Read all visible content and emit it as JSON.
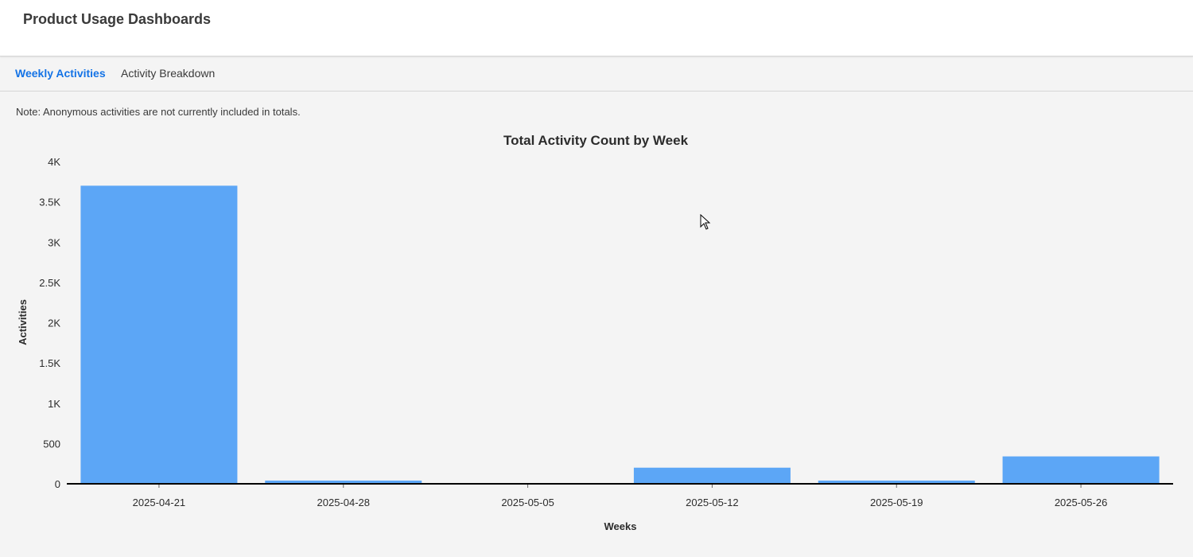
{
  "header": {
    "title": "Product Usage Dashboards"
  },
  "tabs": [
    {
      "label": "Weekly Activities",
      "active": true
    },
    {
      "label": "Activity Breakdown",
      "active": false
    }
  ],
  "note": "Note: Anonymous activities are not currently included in totals.",
  "colors": {
    "accent": "#1473e6",
    "bar": "#5ca6f6",
    "axis": "#000000"
  },
  "chart_data": {
    "type": "bar",
    "title": "Total Activity Count by Week",
    "xlabel": "Weeks",
    "ylabel": "Activities",
    "categories": [
      "2025-04-21",
      "2025-04-28",
      "2025-05-05",
      "2025-05-12",
      "2025-05-19",
      "2025-05-26"
    ],
    "values": [
      3700,
      40,
      0,
      200,
      40,
      340
    ],
    "ylim": [
      0,
      4000
    ],
    "yticks": [
      {
        "value": 0,
        "label": "0"
      },
      {
        "value": 500,
        "label": "500"
      },
      {
        "value": 1000,
        "label": "1K"
      },
      {
        "value": 1500,
        "label": "1.5K"
      },
      {
        "value": 2000,
        "label": "2K"
      },
      {
        "value": 2500,
        "label": "2.5K"
      },
      {
        "value": 3000,
        "label": "3K"
      },
      {
        "value": 3500,
        "label": "3.5K"
      },
      {
        "value": 4000,
        "label": "4K"
      }
    ],
    "grid": false,
    "legend": "none"
  }
}
